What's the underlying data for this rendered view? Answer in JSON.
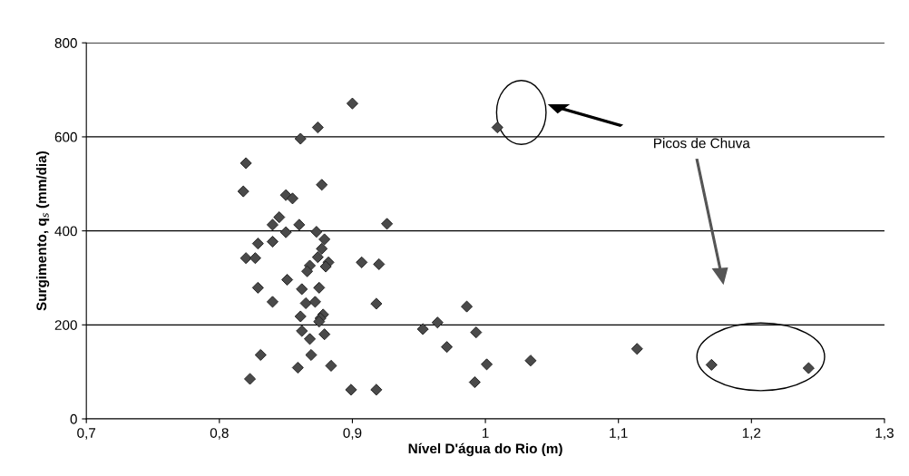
{
  "chart_data": {
    "type": "scatter",
    "xlabel": "Nível D'água do Rio (m)",
    "ylabel": "Surgimento, q$_{s}$ (mm/dia)",
    "xlim": [
      0.7,
      1.3
    ],
    "xticks": [
      {
        "value": 0.7,
        "label": "0,7"
      },
      {
        "value": 0.8,
        "label": "0,8"
      },
      {
        "value": 0.9,
        "label": "0,9"
      },
      {
        "value": 1.0,
        "label": "1"
      },
      {
        "value": 1.1,
        "label": "1,1"
      },
      {
        "value": 1.2,
        "label": "1,2"
      },
      {
        "value": 1.3,
        "label": "1,3"
      }
    ],
    "ylim": [
      0,
      800
    ],
    "yticks": [
      0,
      200,
      400,
      600,
      800
    ],
    "grid": "y",
    "marker": "diamond",
    "annotations": [
      "Picos de Chuva"
    ],
    "series": [
      {
        "color": "#4a4a4a",
        "x": [
          0.9,
          0.874,
          0.861,
          0.82,
          0.818,
          0.877,
          0.85,
          0.855,
          0.845,
          0.84,
          0.86,
          0.926,
          0.85,
          0.873,
          0.829,
          0.84,
          0.879,
          0.877,
          0.82,
          0.827,
          0.874,
          0.907,
          0.92,
          0.868,
          0.866,
          0.882,
          0.88,
          0.851,
          0.829,
          0.862,
          0.875,
          0.84,
          0.865,
          0.872,
          0.918,
          0.861,
          0.878,
          0.876,
          0.875,
          0.953,
          0.964,
          0.862,
          0.879,
          0.868,
          0.831,
          0.869,
          0.859,
          0.884,
          0.823,
          0.899,
          0.918,
          0.986,
          0.993,
          0.971,
          1.001,
          1.034,
          0.992,
          1.009,
          1.114,
          1.17,
          1.243
        ],
        "values": [
          671,
          620,
          596,
          544,
          484,
          498,
          476,
          469,
          429,
          413,
          413,
          415,
          397,
          398,
          373,
          377,
          382,
          362,
          342,
          342,
          344,
          333,
          329,
          326,
          314,
          333,
          324,
          296,
          279,
          276,
          279,
          249,
          246,
          249,
          245,
          218,
          222,
          214,
          207,
          191,
          205,
          187,
          180,
          170,
          136,
          136,
          109,
          113,
          85,
          62,
          62,
          239,
          184,
          153,
          116,
          124,
          78,
          620,
          149,
          115,
          108
        ]
      }
    ]
  }
}
